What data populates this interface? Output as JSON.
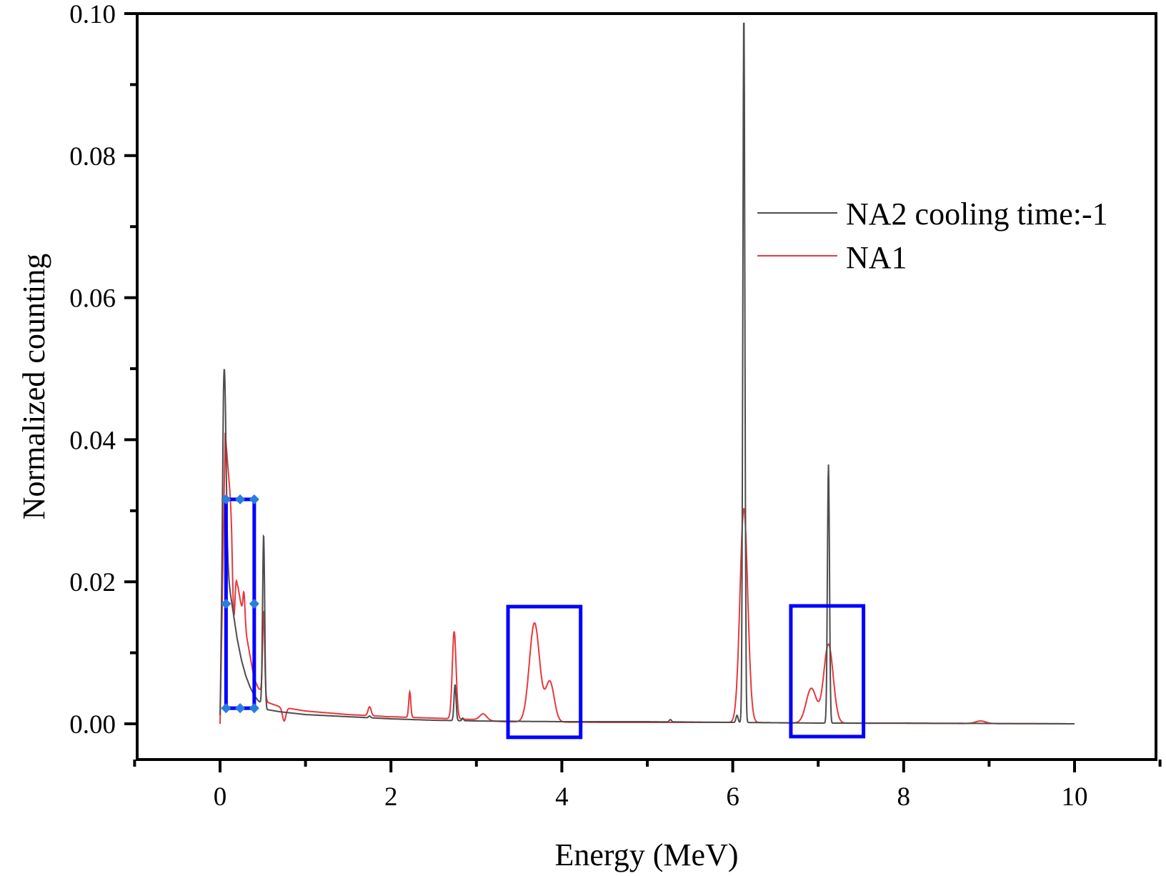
{
  "chart_data": {
    "type": "line",
    "title": "",
    "xlabel": "Energy (MeV)",
    "ylabel": "Normalized counting",
    "xlim": [
      -1,
      11
    ],
    "ylim": [
      -0.005,
      0.1
    ],
    "xticks": [
      0,
      2,
      4,
      6,
      8,
      10
    ],
    "xtick_labels": [
      "0",
      "2",
      "4",
      "6",
      "8",
      "10"
    ],
    "yticks": [
      0.0,
      0.02,
      0.04,
      0.06,
      0.08,
      0.1
    ],
    "ytick_labels": [
      "0.00",
      "0.02",
      "0.04",
      "0.06",
      "0.08",
      "0.10"
    ],
    "grid": false,
    "legend": {
      "position": "top-right",
      "entries": [
        {
          "label": "NA2 cooling time:-1",
          "color": "#4d4d4d"
        },
        {
          "label": "NA1",
          "color": "#e8383d"
        }
      ]
    },
    "series": [
      {
        "name": "NA2 cooling time:-1",
        "color": "#4d4d4d",
        "background": [
          [
            0.0,
            0.0
          ],
          [
            0.04,
            0.022
          ],
          [
            0.1,
            0.02
          ],
          [
            0.15,
            0.016
          ],
          [
            0.2,
            0.012
          ],
          [
            0.25,
            0.009
          ],
          [
            0.3,
            0.0068
          ],
          [
            0.35,
            0.0052
          ],
          [
            0.4,
            0.004
          ],
          [
            0.45,
            0.0032
          ],
          [
            0.5,
            0.0028
          ],
          [
            0.55,
            0.002
          ],
          [
            0.7,
            0.0017
          ],
          [
            1.0,
            0.0013
          ],
          [
            1.5,
            0.001
          ],
          [
            2.0,
            0.0007
          ],
          [
            2.5,
            0.0005
          ],
          [
            3.0,
            0.0004
          ],
          [
            4.0,
            0.0003
          ],
          [
            5.0,
            0.0003
          ],
          [
            6.0,
            0.0002
          ],
          [
            7.0,
            0.0001
          ],
          [
            8.0,
            0.0001
          ],
          [
            9.0,
            5e-05
          ],
          [
            10.0,
            0.0
          ]
        ],
        "peaks": [
          {
            "x": 0.05,
            "y": 0.05,
            "width": 0.02
          },
          {
            "x": 0.51,
            "y": 0.0267,
            "width": 0.012
          },
          {
            "x": 1.75,
            "y": 0.0011,
            "width": 0.012
          },
          {
            "x": 2.75,
            "y": 0.0055,
            "width": 0.012
          },
          {
            "x": 2.84,
            "y": 0.0008,
            "width": 0.01
          },
          {
            "x": 5.27,
            "y": 0.0006,
            "width": 0.012
          },
          {
            "x": 6.05,
            "y": 0.0012,
            "width": 0.012
          },
          {
            "x": 6.13,
            "y": 0.1,
            "width": 0.012
          },
          {
            "x": 7.12,
            "y": 0.0365,
            "width": 0.012
          }
        ]
      },
      {
        "name": "NA1",
        "color": "#e8383d",
        "background": [
          [
            0.0,
            0.0
          ],
          [
            0.03,
            0.02
          ],
          [
            0.06,
            0.041
          ],
          [
            0.1,
            0.035
          ],
          [
            0.2,
            0.02
          ],
          [
            0.3,
            0.013
          ],
          [
            0.4,
            0.0063
          ],
          [
            0.45,
            0.005
          ],
          [
            0.5,
            0.0045
          ],
          [
            0.56,
            0.003
          ],
          [
            0.7,
            0.0024
          ],
          [
            1.0,
            0.0018
          ],
          [
            1.5,
            0.0013
          ],
          [
            2.0,
            0.001
          ],
          [
            2.5,
            0.0008
          ],
          [
            3.0,
            0.0006
          ],
          [
            3.3,
            0.0003
          ],
          [
            4.5,
            0.0002
          ],
          [
            6.0,
            0.0002
          ],
          [
            7.0,
            0.0001
          ],
          [
            10.0,
            0.0
          ]
        ],
        "peaks": [
          {
            "x": 0.16,
            "y": 0.0155,
            "width": 0.015
          },
          {
            "x": 0.28,
            "y": 0.0185,
            "width": 0.012
          },
          {
            "x": 0.51,
            "y": 0.016,
            "width": 0.012
          },
          {
            "x": 0.75,
            "y": 0.0004,
            "width": 0.02
          },
          {
            "x": 1.75,
            "y": 0.0024,
            "width": 0.018
          },
          {
            "x": 1.95,
            "y": 0.001,
            "width": 0.025
          },
          {
            "x": 2.22,
            "y": 0.0045,
            "width": 0.012
          },
          {
            "x": 2.74,
            "y": 0.013,
            "width": 0.022
          },
          {
            "x": 3.08,
            "y": 0.0014,
            "width": 0.04
          },
          {
            "x": 3.68,
            "y": 0.0142,
            "width": 0.06
          },
          {
            "x": 3.86,
            "y": 0.0059,
            "width": 0.05
          },
          {
            "x": 6.13,
            "y": 0.0303,
            "width": 0.045
          },
          {
            "x": 6.92,
            "y": 0.005,
            "width": 0.06
          },
          {
            "x": 7.12,
            "y": 0.0112,
            "width": 0.055
          },
          {
            "x": 8.9,
            "y": 0.0004,
            "width": 0.06
          }
        ]
      }
    ],
    "annotations": [
      {
        "type": "rect",
        "x0": 0.07,
        "x1": 0.4,
        "y0": 0.0022,
        "y1": 0.0316,
        "color": "#0000ff",
        "handles": true,
        "handle_color": "#2a7de1"
      },
      {
        "type": "rect",
        "x0": 3.37,
        "x1": 4.22,
        "y0": -0.0019,
        "y1": 0.0165,
        "color": "#0000ff"
      },
      {
        "type": "rect",
        "x0": 6.68,
        "x1": 7.53,
        "y0": -0.0018,
        "y1": 0.0166,
        "color": "#0000ff"
      }
    ]
  }
}
